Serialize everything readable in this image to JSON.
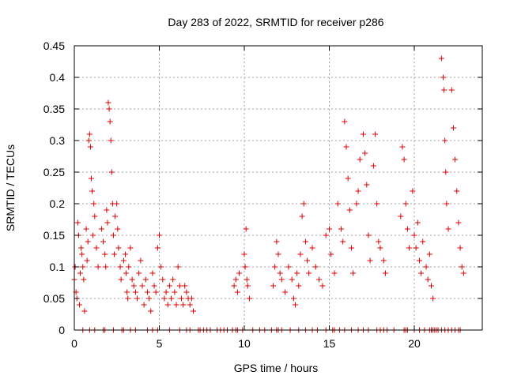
{
  "chart_data": {
    "type": "scatter",
    "title": "Day 283 of 2022, SRMTID for receiver p286",
    "xlabel": "GPS time / hours",
    "ylabel": "SRMTID / TECUs",
    "xlim": [
      0,
      24
    ],
    "ylim": [
      0,
      0.45
    ],
    "xticks": [
      0,
      5,
      10,
      15,
      20
    ],
    "xtick_labels": [
      "0",
      "5",
      "10",
      "15",
      "20"
    ],
    "yticks": [
      0,
      0.05,
      0.1,
      0.15,
      0.2,
      0.25,
      0.3,
      0.35,
      0.4,
      0.45
    ],
    "ytick_labels": [
      "0",
      "0.05",
      "0.1",
      "0.15",
      "0.2",
      "0.25",
      "0.3",
      "0.35",
      "0.4",
      "0.45"
    ],
    "grid": true,
    "marker": "+",
    "color": "#dd0000",
    "series": [
      {
        "name": "SRMTID",
        "points": [
          [
            0.0,
            0.08
          ],
          [
            0.05,
            0.1
          ],
          [
            0.1,
            0.06
          ],
          [
            0.15,
            0.05
          ],
          [
            0.2,
            0.17
          ],
          [
            0.25,
            0.15
          ],
          [
            0.3,
            0.04
          ],
          [
            0.35,
            0.09
          ],
          [
            0.4,
            0.13
          ],
          [
            0.45,
            0.12
          ],
          [
            0.5,
            0.1
          ],
          [
            0.55,
            0.08
          ],
          [
            0.6,
            0.03
          ],
          [
            0.7,
            0.16
          ],
          [
            0.75,
            0.11
          ],
          [
            0.8,
            0.14
          ],
          [
            0.85,
            0.3
          ],
          [
            0.9,
            0.31
          ],
          [
            0.95,
            0.29
          ],
          [
            1.0,
            0.24
          ],
          [
            1.05,
            0.22
          ],
          [
            1.1,
            0.15
          ],
          [
            1.15,
            0.2
          ],
          [
            1.2,
            0.18
          ],
          [
            1.3,
            0.13
          ],
          [
            1.4,
            0.1
          ],
          [
            1.6,
            0.16
          ],
          [
            1.7,
            0.14
          ],
          [
            1.8,
            0.12
          ],
          [
            1.85,
            0.1
          ],
          [
            1.9,
            0.19
          ],
          [
            1.95,
            0.17
          ],
          [
            2.0,
            0.36
          ],
          [
            2.05,
            0.35
          ],
          [
            2.1,
            0.33
          ],
          [
            2.15,
            0.3
          ],
          [
            2.2,
            0.25
          ],
          [
            2.25,
            0.2
          ],
          [
            2.3,
            0.15
          ],
          [
            2.35,
            0.12
          ],
          [
            2.4,
            0.18
          ],
          [
            2.5,
            0.2
          ],
          [
            2.55,
            0.16
          ],
          [
            2.6,
            0.13
          ],
          [
            2.7,
            0.1
          ],
          [
            2.75,
            0.08
          ],
          [
            2.9,
            0.11
          ],
          [
            3.0,
            0.12
          ],
          [
            3.05,
            0.09
          ],
          [
            3.1,
            0.06
          ],
          [
            3.15,
            0.05
          ],
          [
            3.2,
            0.1
          ],
          [
            3.3,
            0.13
          ],
          [
            3.4,
            0.08
          ],
          [
            3.5,
            0.07
          ],
          [
            3.6,
            0.06
          ],
          [
            3.7,
            0.05
          ],
          [
            3.8,
            0.09
          ],
          [
            3.9,
            0.11
          ],
          [
            4.0,
            0.07
          ],
          [
            4.1,
            0.04
          ],
          [
            4.2,
            0.08
          ],
          [
            4.3,
            0.06
          ],
          [
            4.4,
            0.05
          ],
          [
            4.5,
            0.03
          ],
          [
            4.6,
            0.09
          ],
          [
            4.7,
            0.07
          ],
          [
            4.8,
            0.06
          ],
          [
            4.9,
            0.13
          ],
          [
            5.0,
            0.15
          ],
          [
            5.1,
            0.1
          ],
          [
            5.2,
            0.08
          ],
          [
            5.3,
            0.05
          ],
          [
            5.4,
            0.06
          ],
          [
            5.5,
            0.04
          ],
          [
            5.6,
            0.07
          ],
          [
            5.7,
            0.05
          ],
          [
            5.8,
            0.08
          ],
          [
            5.9,
            0.06
          ],
          [
            6.0,
            0.04
          ],
          [
            6.1,
            0.1
          ],
          [
            6.2,
            0.07
          ],
          [
            6.3,
            0.05
          ],
          [
            6.4,
            0.04
          ],
          [
            6.5,
            0.07
          ],
          [
            6.6,
            0.06
          ],
          [
            6.7,
            0.05
          ],
          [
            6.8,
            0.04
          ],
          [
            6.9,
            0.05
          ],
          [
            7.0,
            0.03
          ],
          [
            9.4,
            0.07
          ],
          [
            9.5,
            0.08
          ],
          [
            9.6,
            0.06
          ],
          [
            9.7,
            0.09
          ],
          [
            10.0,
            0.12
          ],
          [
            10.05,
            0.1
          ],
          [
            10.1,
            0.16
          ],
          [
            10.15,
            0.08
          ],
          [
            10.2,
            0.07
          ],
          [
            10.3,
            0.05
          ],
          [
            11.7,
            0.07
          ],
          [
            11.8,
            0.1
          ],
          [
            11.9,
            0.14
          ],
          [
            12.0,
            0.12
          ],
          [
            12.1,
            0.09
          ],
          [
            12.2,
            0.08
          ],
          [
            12.4,
            0.06
          ],
          [
            12.6,
            0.1
          ],
          [
            12.8,
            0.08
          ],
          [
            12.9,
            0.05
          ],
          [
            13.0,
            0.04
          ],
          [
            13.1,
            0.09
          ],
          [
            13.2,
            0.07
          ],
          [
            13.3,
            0.12
          ],
          [
            13.4,
            0.18
          ],
          [
            13.5,
            0.2
          ],
          [
            13.6,
            0.14
          ],
          [
            13.7,
            0.11
          ],
          [
            13.8,
            0.09
          ],
          [
            14.0,
            0.13
          ],
          [
            14.2,
            0.1
          ],
          [
            14.4,
            0.08
          ],
          [
            14.6,
            0.07
          ],
          [
            14.8,
            0.15
          ],
          [
            15.0,
            0.16
          ],
          [
            15.1,
            0.12
          ],
          [
            15.3,
            0.09
          ],
          [
            15.5,
            0.2
          ],
          [
            15.7,
            0.16
          ],
          [
            15.8,
            0.14
          ],
          [
            15.9,
            0.33
          ],
          [
            16.0,
            0.29
          ],
          [
            16.1,
            0.24
          ],
          [
            16.2,
            0.19
          ],
          [
            16.3,
            0.13
          ],
          [
            16.4,
            0.09
          ],
          [
            16.6,
            0.2
          ],
          [
            16.7,
            0.22
          ],
          [
            16.8,
            0.27
          ],
          [
            17.0,
            0.31
          ],
          [
            17.1,
            0.28
          ],
          [
            17.2,
            0.23
          ],
          [
            17.3,
            0.15
          ],
          [
            17.4,
            0.11
          ],
          [
            17.6,
            0.26
          ],
          [
            17.7,
            0.31
          ],
          [
            17.8,
            0.2
          ],
          [
            17.9,
            0.14
          ],
          [
            18.0,
            0.13
          ],
          [
            18.2,
            0.11
          ],
          [
            18.3,
            0.09
          ],
          [
            19.2,
            0.18
          ],
          [
            19.3,
            0.29
          ],
          [
            19.4,
            0.27
          ],
          [
            19.5,
            0.2
          ],
          [
            19.6,
            0.16
          ],
          [
            19.7,
            0.13
          ],
          [
            19.9,
            0.22
          ],
          [
            20.0,
            0.15
          ],
          [
            20.1,
            0.13
          ],
          [
            20.2,
            0.17
          ],
          [
            20.3,
            0.11
          ],
          [
            20.4,
            0.09
          ],
          [
            20.5,
            0.14
          ],
          [
            20.7,
            0.1
          ],
          [
            20.8,
            0.08
          ],
          [
            20.9,
            0.12
          ],
          [
            21.0,
            0.07
          ],
          [
            21.1,
            0.05
          ],
          [
            21.6,
            0.43
          ],
          [
            21.7,
            0.4
          ],
          [
            21.75,
            0.38
          ],
          [
            21.8,
            0.3
          ],
          [
            21.85,
            0.25
          ],
          [
            21.9,
            0.2
          ],
          [
            22.0,
            0.16
          ],
          [
            22.2,
            0.38
          ],
          [
            22.3,
            0.32
          ],
          [
            22.4,
            0.27
          ],
          [
            22.5,
            0.22
          ],
          [
            22.6,
            0.17
          ],
          [
            22.7,
            0.13
          ],
          [
            22.8,
            0.1
          ],
          [
            22.9,
            0.09
          ]
        ]
      }
    ],
    "zero_points_x": [
      0.5,
      0.9,
      1.2,
      1.7,
      1.8,
      2.3,
      2.8,
      2.9,
      3.3,
      3.6,
      4.3,
      4.6,
      4.9,
      5.6,
      6.2,
      6.6,
      6.8,
      7.3,
      7.4,
      7.6,
      7.8,
      8.0,
      8.4,
      8.6,
      8.8,
      9.0,
      9.3,
      9.5,
      9.6,
      9.9,
      10.5,
      10.9,
      11.2,
      11.6,
      11.9,
      12.0,
      12.2,
      12.7,
      13.2,
      13.6,
      14.0,
      14.3,
      14.8,
      15.2,
      15.3,
      15.6,
      15.9,
      16.3,
      16.7,
      17.0,
      17.3,
      17.8,
      18.0,
      18.2,
      18.4,
      18.8,
      19.4,
      19.5,
      19.6,
      20.0,
      20.3,
      20.6,
      20.9,
      21.0,
      21.1,
      21.2,
      21.3,
      21.4,
      21.6,
      21.8,
      22.0,
      22.2,
      22.4,
      22.6,
      22.7
    ]
  }
}
